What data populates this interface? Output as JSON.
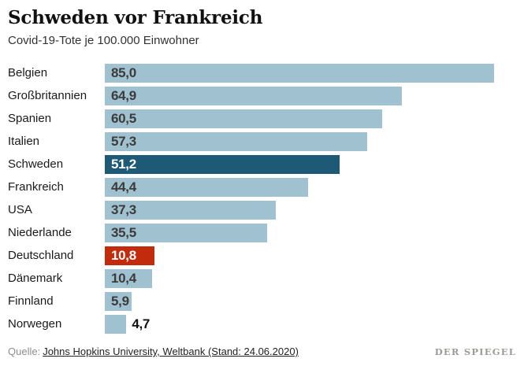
{
  "chart_data": {
    "type": "bar",
    "orientation": "horizontal",
    "title": "Schweden vor Frankreich",
    "subtitle": "Covid-19-Tote je 100.000 Einwohner",
    "categories": [
      "Belgien",
      "Großbritannien",
      "Spanien",
      "Italien",
      "Schweden",
      "Frankreich",
      "USA",
      "Niederlande",
      "Deutschland",
      "Dänemark",
      "Finnland",
      "Norwegen"
    ],
    "values": [
      85.0,
      64.9,
      60.5,
      57.3,
      51.2,
      44.4,
      37.3,
      35.5,
      10.8,
      10.4,
      5.9,
      4.7
    ],
    "value_labels": [
      "85,0",
      "64,9",
      "60,5",
      "57,3",
      "51,2",
      "44,4",
      "37,3",
      "35,5",
      "10,8",
      "10,4",
      "5,9",
      "4,7"
    ],
    "xlim": [
      0,
      85
    ],
    "grid": false,
    "legend": false,
    "colors": {
      "bar_default": "#a0c1d0",
      "highlights": {
        "4": "#1e5a75",
        "8": "#c32b0d"
      },
      "value_text": "#3b3b3b",
      "value_text_on_highlight": "#ffffff",
      "value_text_outside": "#111111"
    },
    "value_outside_indices": [
      11
    ]
  },
  "footer": {
    "source_prefix": "Quelle:",
    "source_link": "Johns Hopkins University, Weltbank (Stand: 24.06.2020)",
    "brand": "DER SPIEGEL"
  }
}
